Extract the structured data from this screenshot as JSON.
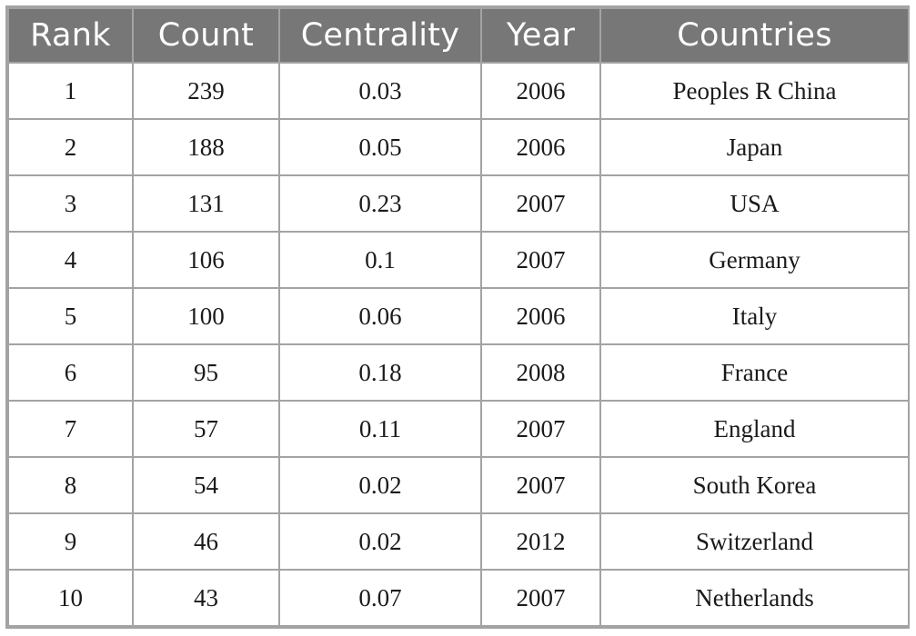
{
  "table": {
    "headers": [
      "Rank",
      "Count",
      "Centrality",
      "Year",
      "Countries"
    ],
    "rows": [
      [
        "1",
        "239",
        "0.03",
        "2006",
        "Peoples R China"
      ],
      [
        "2",
        "188",
        "0.05",
        "2006",
        "Japan"
      ],
      [
        "3",
        "131",
        "0.23",
        "2007",
        "USA"
      ],
      [
        "4",
        "106",
        "0.1",
        "2007",
        "Germany"
      ],
      [
        "5",
        "100",
        "0.06",
        "2006",
        "Italy"
      ],
      [
        "6",
        "95",
        "0.18",
        "2008",
        "France"
      ],
      [
        "7",
        "57",
        "0.11",
        "2007",
        "England"
      ],
      [
        "8",
        "54",
        "0.02",
        "2007",
        "South Korea"
      ],
      [
        "9",
        "46",
        "0.02",
        "2012",
        "Switzerland"
      ],
      [
        "10",
        "43",
        "0.07",
        "2007",
        "Netherlands"
      ]
    ]
  },
  "colors": {
    "header_background": "#777777",
    "header_text": "#ffffff",
    "border": "#a3a3a3",
    "cell_text": "#1a1a1a"
  }
}
